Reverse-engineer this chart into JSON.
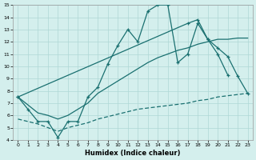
{
  "xlabel": "Humidex (Indice chaleur)",
  "background_color": "#d4efed",
  "grid_color": "#aed8d6",
  "line_color": "#1a7070",
  "xlim": [
    -0.5,
    23.5
  ],
  "ylim": [
    4,
    15
  ],
  "xticks": [
    0,
    1,
    2,
    3,
    4,
    5,
    6,
    7,
    8,
    9,
    10,
    11,
    12,
    13,
    14,
    15,
    16,
    17,
    18,
    19,
    20,
    21,
    22,
    23
  ],
  "yticks": [
    4,
    5,
    6,
    7,
    8,
    9,
    10,
    11,
    12,
    13,
    14,
    15
  ],
  "series1_x": [
    0,
    1,
    2,
    3,
    4,
    5,
    6,
    7,
    8,
    9,
    10,
    11,
    12,
    13,
    14,
    15,
    16,
    17,
    18,
    19,
    20,
    21
  ],
  "series1_y": [
    7.5,
    6.5,
    5.5,
    5.5,
    4.2,
    5.5,
    5.5,
    7.5,
    8.3,
    10.2,
    11.7,
    13.0,
    12.0,
    14.5,
    15.0,
    15.0,
    10.3,
    11.0,
    13.5,
    12.2,
    11.0,
    9.3
  ],
  "series2_x": [
    0,
    2,
    3,
    4,
    5,
    6,
    7,
    8,
    9,
    10,
    11,
    12,
    13,
    14,
    15,
    16,
    17,
    18,
    19,
    20,
    21,
    22,
    23
  ],
  "series2_y": [
    7.5,
    6.2,
    6.0,
    5.7,
    6.0,
    6.5,
    7.0,
    7.8,
    8.3,
    8.8,
    9.3,
    9.8,
    10.3,
    10.7,
    11.0,
    11.3,
    11.5,
    11.8,
    12.0,
    12.2,
    12.2,
    12.3,
    12.3
  ],
  "series3_x": [
    0,
    17,
    18,
    19,
    20,
    21,
    22,
    23
  ],
  "series3_y": [
    7.5,
    13.5,
    13.8,
    12.2,
    11.5,
    10.8,
    9.2,
    7.8
  ],
  "series4_x": [
    0,
    2,
    3,
    4,
    5,
    6,
    7,
    8,
    9,
    10,
    11,
    12,
    13,
    14,
    15,
    16,
    17,
    18,
    19,
    20,
    21,
    22,
    23
  ],
  "series4_y": [
    5.7,
    5.3,
    5.0,
    4.7,
    5.0,
    5.2,
    5.4,
    5.7,
    5.9,
    6.1,
    6.3,
    6.5,
    6.6,
    6.7,
    6.8,
    6.9,
    7.0,
    7.2,
    7.3,
    7.5,
    7.6,
    7.7,
    7.8
  ]
}
